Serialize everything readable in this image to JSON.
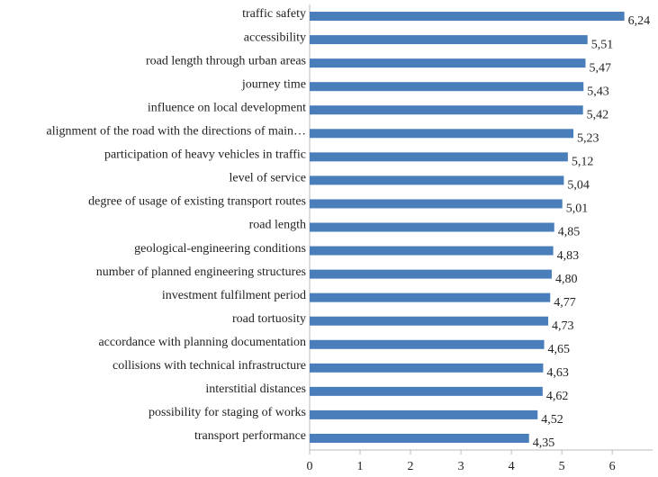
{
  "chart_data": {
    "type": "barh",
    "categories": [
      "traffic safety",
      "accessibility",
      "road length through urban areas",
      "journey time",
      "influence on local development",
      "alignment of the road with the directions of main…",
      "participation of heavy vehicles in traffic",
      "level of service",
      "degree of usage of existing transport routes",
      "road length",
      "geological-engineering conditions",
      "number of planned engineering structures",
      "investment fulfilment period",
      "road tortuosity",
      "accordance with planning documentation",
      "collisions with technical infrastructure",
      "interstitial distances",
      "possibility for staging of works",
      "transport performance"
    ],
    "values": [
      6.24,
      5.51,
      5.47,
      5.43,
      5.42,
      5.23,
      5.12,
      5.04,
      5.01,
      4.85,
      4.83,
      4.8,
      4.77,
      4.73,
      4.65,
      4.63,
      4.62,
      4.52,
      4.35
    ],
    "value_labels": [
      "6,24",
      "5,51",
      "5,47",
      "5,43",
      "5,42",
      "5,23",
      "5,12",
      "5,04",
      "5,01",
      "4,85",
      "4,83",
      "4,80",
      "4,77",
      "4,73",
      "4,65",
      "4,63",
      "4,62",
      "4,52",
      "4,35"
    ],
    "color": "#4a7ebb",
    "xlim": [
      0,
      6.8
    ],
    "xticks": [
      0,
      1,
      2,
      3,
      4,
      5,
      6
    ],
    "grid": false
  }
}
